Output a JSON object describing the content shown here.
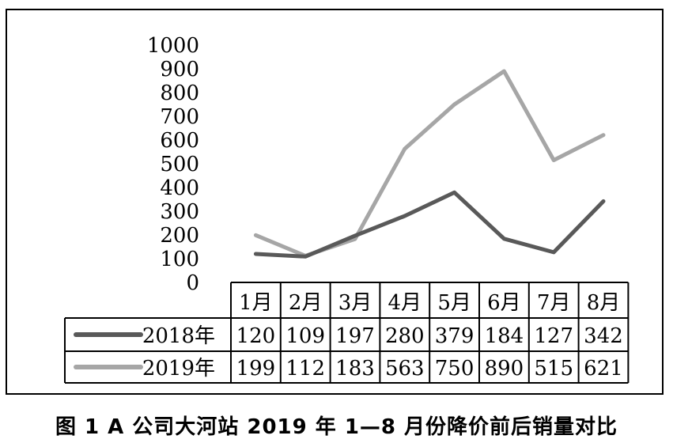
{
  "caption": "图 1  A 公司大河站 2019 年 1—8 月份降价前后销量对比",
  "chart_data": {
    "type": "line",
    "title": "",
    "xlabel": "",
    "ylabel": "",
    "categories": [
      "1月",
      "2月",
      "3月",
      "4月",
      "5月",
      "6月",
      "7月",
      "8月"
    ],
    "ylim": [
      0,
      1000
    ],
    "yticks": [
      0,
      100,
      200,
      300,
      400,
      500,
      600,
      700,
      800,
      900,
      1000
    ],
    "grid": false,
    "legend": "data-table-left",
    "series": [
      {
        "name": "2018年",
        "values": [
          120,
          109,
          197,
          280,
          379,
          184,
          127,
          342
        ],
        "color": "#595959"
      },
      {
        "name": "2019年",
        "values": [
          199,
          112,
          183,
          563,
          750,
          890,
          515,
          621
        ],
        "color": "#a6a6a6"
      }
    ]
  }
}
